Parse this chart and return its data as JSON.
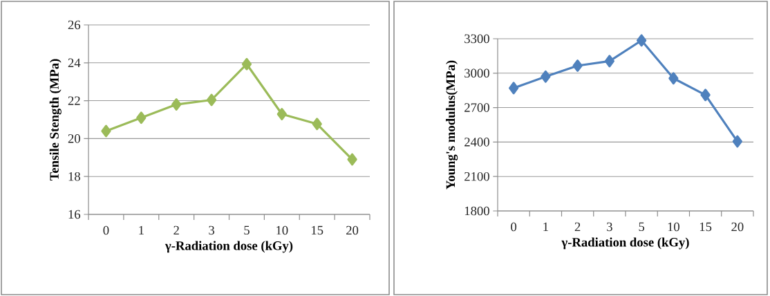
{
  "chart_data": [
    {
      "type": "line",
      "categories": [
        "0",
        "1",
        "2",
        "3",
        "5",
        "10",
        "15",
        "20"
      ],
      "xlabel": "γ-Radiation dose (kGy)",
      "ylabel": "Tensile Stength (MPa)",
      "ylim": [
        16,
        26
      ],
      "yticks": [
        16,
        18,
        20,
        22,
        24,
        26
      ],
      "grid": "y",
      "marker": "diamond",
      "series": [
        {
          "color": "#9bbb59",
          "values": [
            20.4,
            21.1,
            21.8,
            22.04,
            23.93,
            21.29,
            20.77,
            18.9
          ]
        }
      ]
    },
    {
      "type": "line",
      "categories": [
        "0",
        "1",
        "2",
        "3",
        "5",
        "10",
        "15",
        "20"
      ],
      "xlabel": "γ-Radiation dose (kGy)",
      "ylabel": "Young's modulus(MPa)",
      "ylim": [
        1800,
        3300
      ],
      "yticks": [
        1800,
        2100,
        2400,
        2700,
        3000,
        3300
      ],
      "grid": "y",
      "marker": "diamond",
      "series": [
        {
          "color": "#4f81bd",
          "values": [
            2870,
            2970,
            3065,
            3105,
            3285,
            2955,
            2810,
            2405
          ]
        }
      ]
    }
  ]
}
